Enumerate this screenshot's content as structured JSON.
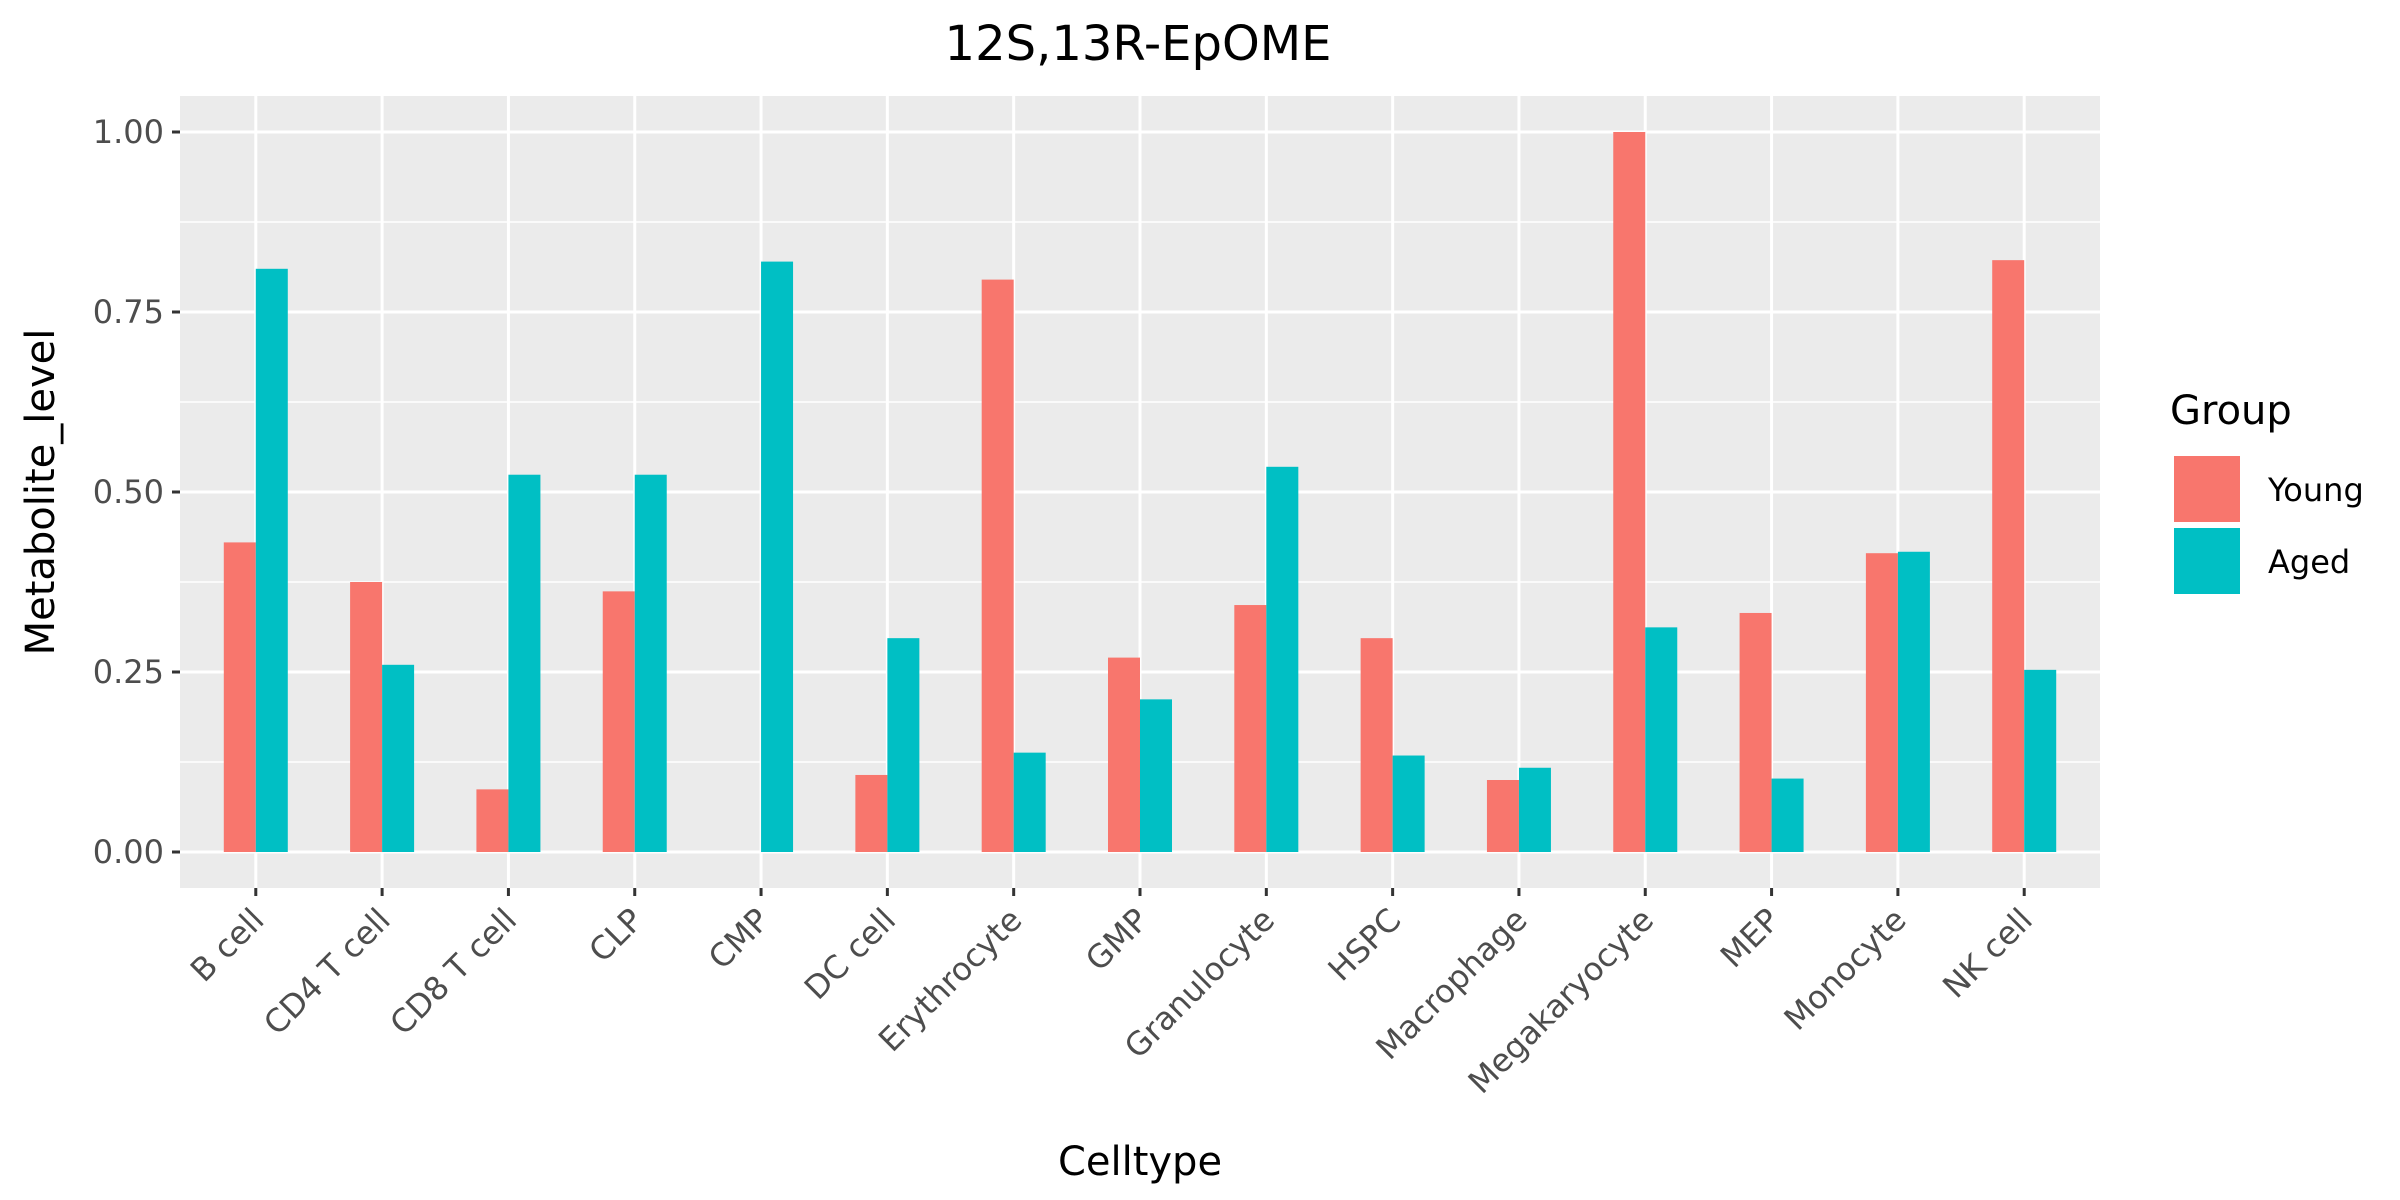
{
  "chart_data": {
    "type": "bar",
    "title": "12S,13R-EpOME",
    "xlabel": "Celltype",
    "ylabel": "Metabolite_level",
    "ylim": [
      -0.05,
      1.05
    ],
    "yticks": [
      0.0,
      0.25,
      0.5,
      0.75,
      1.0
    ],
    "ytick_labels": [
      "0.00",
      "0.25",
      "0.50",
      "0.75",
      "1.00"
    ],
    "grid": true,
    "legend_position": "right",
    "legend_title": "Group",
    "categories": [
      "B cell",
      "CD4 T cell",
      "CD8 T cell",
      "CLP",
      "CMP",
      "DC cell",
      "Erythrocyte",
      "GMP",
      "Granulocyte",
      "HSPC",
      "Macrophage",
      "Megakaryocyte",
      "MEP",
      "Monocyte",
      "NK cell"
    ],
    "series": [
      {
        "name": "Young",
        "color": "#F8766D",
        "values": [
          0.43,
          0.375,
          0.087,
          0.362,
          0.0,
          0.107,
          0.795,
          0.27,
          0.343,
          0.297,
          0.1,
          1.0,
          0.332,
          0.415,
          0.822
        ]
      },
      {
        "name": "Aged",
        "color": "#00BFC4",
        "values": [
          0.81,
          0.26,
          0.524,
          0.524,
          0.82,
          0.297,
          0.138,
          0.212,
          0.535,
          0.134,
          0.117,
          0.312,
          0.102,
          0.417,
          0.253
        ]
      }
    ]
  }
}
